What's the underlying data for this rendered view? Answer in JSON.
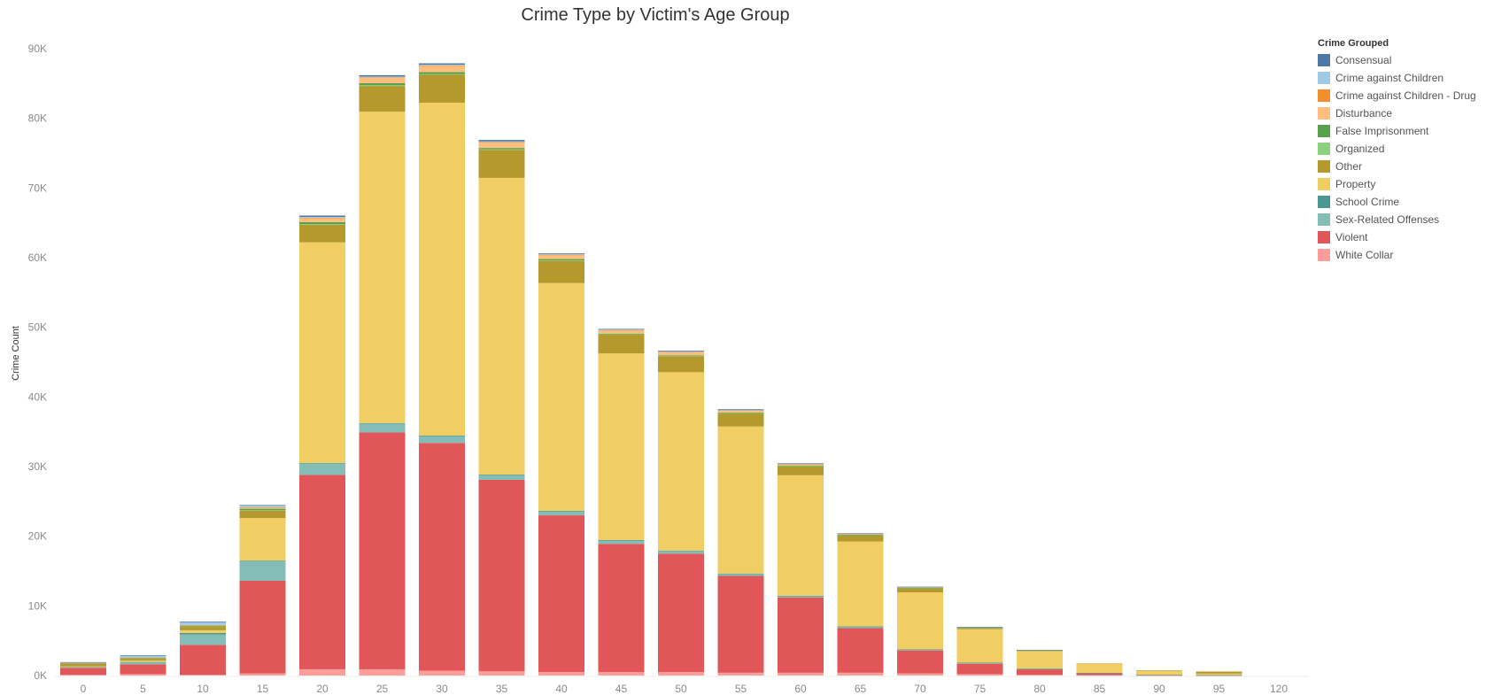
{
  "chart_data": {
    "type": "bar",
    "stacked": true,
    "title": "Crime Type by Victim's Age Group",
    "xlabel": "",
    "ylabel": "Crime Count",
    "ylim": [
      0,
      90000
    ],
    "yticks": [
      "0K",
      "10K",
      "20K",
      "30K",
      "40K",
      "50K",
      "60K",
      "70K",
      "80K",
      "90K"
    ],
    "ytick_values": [
      0,
      10000,
      20000,
      30000,
      40000,
      50000,
      60000,
      70000,
      80000,
      90000
    ],
    "categories": [
      "0",
      "5",
      "10",
      "15",
      "20",
      "25",
      "30",
      "35",
      "40",
      "45",
      "50",
      "55",
      "60",
      "65",
      "70",
      "75",
      "80",
      "85",
      "90",
      "95",
      "120"
    ],
    "legend": {
      "title": "Crime Grouped",
      "position": "right"
    },
    "grid": false,
    "series": [
      {
        "name": "White Collar",
        "color": "#FF9D9A",
        "values": [
          100,
          200,
          100,
          300,
          900,
          900,
          700,
          600,
          500,
          500,
          500,
          400,
          400,
          400,
          300,
          200,
          100,
          50,
          20,
          10,
          0
        ]
      },
      {
        "name": "Violent",
        "color": "#E15759",
        "values": [
          1000,
          1400,
          4300,
          13300,
          27900,
          34000,
          32700,
          27500,
          22500,
          18400,
          17000,
          13900,
          10800,
          6400,
          3300,
          1500,
          800,
          300,
          80,
          50,
          0
        ]
      },
      {
        "name": "Sex-Related Offenses",
        "color": "#86BCB6",
        "values": [
          100,
          300,
          1500,
          2800,
          1600,
          1300,
          1000,
          700,
          600,
          500,
          400,
          300,
          200,
          200,
          100,
          100,
          50,
          20,
          5,
          5,
          0
        ]
      },
      {
        "name": "School Crime",
        "color": "#499894",
        "values": [
          20,
          50,
          200,
          100,
          100,
          50,
          50,
          50,
          50,
          50,
          50,
          50,
          50,
          50,
          50,
          50,
          50,
          20,
          5,
          5,
          0
        ]
      },
      {
        "name": "Property",
        "color": "#F1CE63",
        "values": [
          100,
          200,
          400,
          6100,
          31700,
          44700,
          47800,
          42600,
          32700,
          26800,
          25600,
          21100,
          17300,
          12200,
          8200,
          4800,
          2500,
          1300,
          600,
          200,
          0
        ]
      },
      {
        "name": "Other",
        "color": "#B6992D",
        "values": [
          400,
          300,
          500,
          1100,
          2500,
          3700,
          4000,
          4000,
          3200,
          2700,
          2300,
          1900,
          1300,
          900,
          600,
          200,
          100,
          50,
          20,
          300,
          0
        ]
      },
      {
        "name": "Organized",
        "color": "#8CD17D",
        "values": [
          20,
          20,
          30,
          50,
          100,
          100,
          100,
          100,
          50,
          50,
          30,
          30,
          20,
          20,
          10,
          10,
          5,
          0,
          0,
          0,
          0
        ]
      },
      {
        "name": "False Imprisonment",
        "color": "#59A14F",
        "values": [
          30,
          50,
          100,
          200,
          300,
          300,
          300,
          200,
          200,
          100,
          100,
          100,
          100,
          50,
          50,
          50,
          50,
          0,
          0,
          0,
          0
        ]
      },
      {
        "name": "Disturbance",
        "color": "#FFBE7D",
        "values": [
          30,
          50,
          100,
          200,
          600,
          800,
          900,
          800,
          600,
          500,
          500,
          300,
          200,
          100,
          100,
          50,
          20,
          10,
          0,
          0,
          0
        ]
      },
      {
        "name": "Crime against Children - Drug",
        "color": "#F28E2B",
        "values": [
          5,
          10,
          20,
          30,
          40,
          50,
          50,
          50,
          30,
          20,
          20,
          10,
          10,
          10,
          5,
          0,
          0,
          0,
          0,
          0,
          0
        ]
      },
      {
        "name": "Crime against Children",
        "color": "#A0CBE8",
        "values": [
          100,
          300,
          400,
          200,
          100,
          100,
          100,
          100,
          100,
          50,
          50,
          50,
          50,
          50,
          20,
          10,
          0,
          0,
          0,
          0,
          0
        ]
      },
      {
        "name": "Consensual",
        "color": "#4E79A7",
        "values": [
          20,
          50,
          100,
          100,
          200,
          200,
          200,
          200,
          100,
          100,
          100,
          100,
          50,
          50,
          20,
          10,
          10,
          0,
          0,
          0,
          0
        ]
      }
    ]
  },
  "legend_order": [
    "Consensual",
    "Crime against Children",
    "Crime against Children - Drug",
    "Disturbance",
    "False Imprisonment",
    "Organized",
    "Other",
    "Property",
    "School Crime",
    "Sex-Related Offenses",
    "Violent",
    "White Collar"
  ]
}
